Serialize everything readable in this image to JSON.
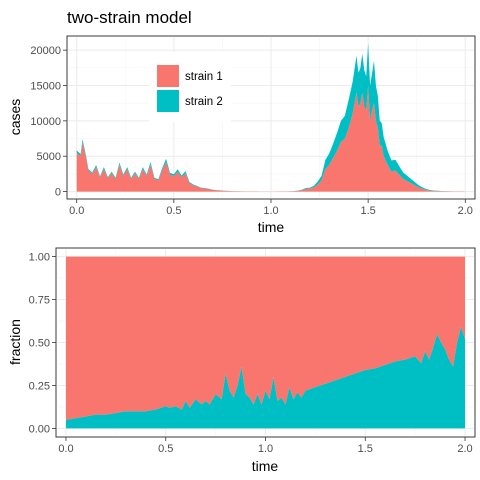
{
  "title": "two-strain model",
  "colors": {
    "strain1": "#F8766D",
    "strain2": "#00BFC4"
  },
  "chart_data": [
    {
      "type": "area",
      "stacked": true,
      "title": "two-strain model",
      "xlabel": "time",
      "ylabel": "cases",
      "xlim": [
        -0.05,
        2.05
      ],
      "ylim": [
        -1050,
        22000
      ],
      "xticks": [
        0.0,
        0.5,
        1.0,
        1.5,
        2.0
      ],
      "xtick_labels": [
        "0.0",
        "0.5",
        "1.0",
        "1.5",
        "2.0"
      ],
      "yticks": [
        0,
        5000,
        10000,
        15000,
        20000
      ],
      "ytick_labels": [
        "0",
        "5000",
        "10000",
        "15000",
        "20000"
      ],
      "legend": {
        "position": "top-left",
        "entries": [
          "strain 1",
          "strain 2"
        ]
      },
      "x": [
        0,
        0.02,
        0.03,
        0.05,
        0.06,
        0.08,
        0.1,
        0.12,
        0.14,
        0.16,
        0.18,
        0.2,
        0.22,
        0.24,
        0.26,
        0.28,
        0.3,
        0.32,
        0.34,
        0.36,
        0.38,
        0.4,
        0.42,
        0.44,
        0.46,
        0.48,
        0.5,
        0.52,
        0.54,
        0.56,
        0.58,
        0.6,
        0.62,
        0.64,
        0.66,
        0.68,
        0.7,
        0.72,
        0.74,
        0.76,
        0.78,
        0.8,
        0.82,
        0.84,
        0.86,
        0.88,
        0.9,
        0.92,
        0.94,
        0.96,
        0.98,
        1.0,
        1.02,
        1.04,
        1.06,
        1.08,
        1.1,
        1.12,
        1.14,
        1.16,
        1.18,
        1.2,
        1.22,
        1.24,
        1.26,
        1.28,
        1.3,
        1.32,
        1.34,
        1.36,
        1.38,
        1.4,
        1.42,
        1.44,
        1.45,
        1.46,
        1.47,
        1.48,
        1.49,
        1.5,
        1.51,
        1.52,
        1.53,
        1.54,
        1.55,
        1.56,
        1.57,
        1.58,
        1.6,
        1.62,
        1.64,
        1.66,
        1.68,
        1.7,
        1.72,
        1.74,
        1.76,
        1.78,
        1.8,
        1.82,
        1.84,
        1.86,
        1.88,
        1.9,
        1.92,
        1.94,
        1.96,
        1.98,
        2.0
      ],
      "series": [
        {
          "name": "strain 1",
          "values": [
            5500,
            5000,
            7000,
            4500,
            3000,
            2500,
            3500,
            2000,
            3200,
            1900,
            2600,
            1800,
            3800,
            2200,
            3200,
            1800,
            2600,
            1800,
            3200,
            2200,
            3800,
            1800,
            1600,
            3000,
            4200,
            2400,
            2200,
            2800,
            2000,
            2600,
            1200,
            900,
            700,
            500,
            450,
            350,
            250,
            180,
            150,
            120,
            80,
            60,
            50,
            30,
            20,
            20,
            20,
            20,
            10,
            10,
            10,
            10,
            10,
            20,
            20,
            20,
            40,
            60,
            120,
            200,
            400,
            400,
            600,
            1000,
            1600,
            3200,
            3800,
            4800,
            5800,
            7000,
            7500,
            9000,
            11000,
            14000,
            12000,
            12500,
            14000,
            12000,
            11500,
            15000,
            10000,
            11500,
            12500,
            10000,
            9000,
            6500,
            6500,
            5000,
            3800,
            2800,
            3000,
            2400,
            1800,
            1500,
            1200,
            900,
            600,
            400,
            220,
            150,
            100,
            80,
            60,
            40,
            30,
            20,
            20,
            20,
            10
          ]
        },
        {
          "name": "strain 2",
          "values": [
            300,
            300,
            400,
            300,
            200,
            200,
            250,
            150,
            250,
            150,
            200,
            150,
            300,
            200,
            250,
            150,
            200,
            150,
            250,
            200,
            350,
            150,
            150,
            300,
            450,
            250,
            250,
            350,
            250,
            300,
            150,
            100,
            80,
            60,
            50,
            50,
            30,
            30,
            25,
            20,
            15,
            12,
            10,
            8,
            5,
            5,
            5,
            5,
            5,
            5,
            5,
            5,
            5,
            5,
            5,
            5,
            10,
            20,
            40,
            70,
            120,
            150,
            200,
            400,
            600,
            1300,
            1600,
            2000,
            2500,
            3000,
            3200,
            4000,
            4500,
            5200,
            4800,
            5000,
            5500,
            5200,
            4800,
            6000,
            5000,
            5200,
            6000,
            5000,
            4500,
            3500,
            3200,
            2700,
            2000,
            1600,
            1500,
            1200,
            900,
            750,
            600,
            450,
            300,
            200,
            120,
            80,
            50,
            40,
            30,
            20,
            15,
            10,
            10,
            10,
            5
          ]
        }
      ]
    },
    {
      "type": "area",
      "stacked": true,
      "normalized": true,
      "xlabel": "time",
      "ylabel": "fraction",
      "xlim": [
        -0.05,
        2.05
      ],
      "ylim": [
        -0.05,
        1.05
      ],
      "xticks": [
        0.0,
        0.5,
        1.0,
        1.5,
        2.0
      ],
      "xtick_labels": [
        "0.0",
        "0.5",
        "1.0",
        "1.5",
        "2.0"
      ],
      "yticks": [
        0.0,
        0.25,
        0.5,
        0.75,
        1.0
      ],
      "ytick_labels": [
        "0.00",
        "0.25",
        "0.50",
        "0.75",
        "1.00"
      ],
      "x": [
        0,
        0.05,
        0.1,
        0.15,
        0.2,
        0.25,
        0.3,
        0.35,
        0.4,
        0.45,
        0.5,
        0.52,
        0.55,
        0.58,
        0.6,
        0.62,
        0.65,
        0.68,
        0.7,
        0.72,
        0.75,
        0.78,
        0.8,
        0.82,
        0.84,
        0.86,
        0.88,
        0.9,
        0.92,
        0.94,
        0.96,
        0.98,
        1.0,
        1.02,
        1.04,
        1.06,
        1.08,
        1.1,
        1.12,
        1.14,
        1.16,
        1.18,
        1.2,
        1.25,
        1.3,
        1.35,
        1.4,
        1.45,
        1.5,
        1.55,
        1.6,
        1.65,
        1.7,
        1.75,
        1.78,
        1.8,
        1.82,
        1.84,
        1.86,
        1.88,
        1.9,
        1.92,
        1.94,
        1.96,
        1.98,
        2.0
      ],
      "series": [
        {
          "name": "strain 2",
          "values": [
            0.05,
            0.06,
            0.07,
            0.08,
            0.08,
            0.09,
            0.1,
            0.1,
            0.1,
            0.11,
            0.13,
            0.12,
            0.13,
            0.11,
            0.16,
            0.12,
            0.17,
            0.14,
            0.16,
            0.14,
            0.2,
            0.17,
            0.32,
            0.22,
            0.18,
            0.25,
            0.36,
            0.2,
            0.18,
            0.14,
            0.2,
            0.14,
            0.22,
            0.17,
            0.3,
            0.16,
            0.18,
            0.14,
            0.24,
            0.17,
            0.21,
            0.18,
            0.22,
            0.24,
            0.26,
            0.28,
            0.3,
            0.32,
            0.34,
            0.35,
            0.37,
            0.39,
            0.4,
            0.42,
            0.38,
            0.45,
            0.4,
            0.47,
            0.55,
            0.5,
            0.46,
            0.4,
            0.36,
            0.5,
            0.59,
            0.52
          ]
        },
        {
          "name": "strain 1",
          "values": [
            0.95,
            0.94,
            0.93,
            0.92,
            0.92,
            0.91,
            0.9,
            0.9,
            0.9,
            0.89,
            0.87,
            0.88,
            0.87,
            0.89,
            0.84,
            0.88,
            0.83,
            0.86,
            0.84,
            0.86,
            0.8,
            0.83,
            0.68,
            0.78,
            0.82,
            0.75,
            0.64,
            0.8,
            0.82,
            0.86,
            0.8,
            0.86,
            0.78,
            0.83,
            0.7,
            0.84,
            0.82,
            0.86,
            0.76,
            0.83,
            0.79,
            0.82,
            0.78,
            0.76,
            0.74,
            0.72,
            0.7,
            0.68,
            0.66,
            0.65,
            0.63,
            0.61,
            0.6,
            0.58,
            0.62,
            0.55,
            0.6,
            0.53,
            0.45,
            0.5,
            0.54,
            0.6,
            0.64,
            0.5,
            0.41,
            0.48
          ]
        }
      ]
    }
  ]
}
